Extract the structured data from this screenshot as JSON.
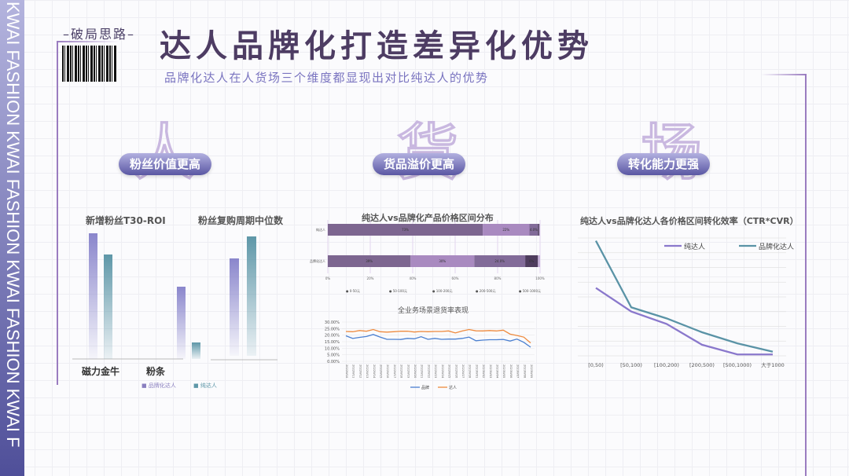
{
  "sidebar": {
    "text": "KWAI FASHION  KWAI FASHION  KWAI FASHION  KWAI F"
  },
  "header": {
    "tag": "–破局思路–",
    "title": "达人品牌化打造差异化优势",
    "subtitle": "品牌化达人在人货场三个维度都显现出对比纯达人的优势"
  },
  "sections": [
    {
      "watermark": "人",
      "label": "粉丝价值更高"
    },
    {
      "watermark": "货",
      "label": "货品溢价更高"
    },
    {
      "watermark": "场",
      "label": "转化能力更强"
    }
  ],
  "colors": {
    "brand": "#8a86cc",
    "pure": "#5e97a8",
    "accent": "#9a7cc0"
  },
  "chart_data": [
    {
      "type": "bar",
      "title": "新增粉丝T30-ROI",
      "categories": [
        "磁力金牛",
        "粉条"
      ],
      "series": [
        {
          "name": "品牌化达人",
          "values": [
            160,
            92
          ]
        },
        {
          "name": "纯达人",
          "values": [
            133,
            21
          ]
        }
      ]
    },
    {
      "type": "bar",
      "title": "粉丝复购周期中位数",
      "categories": [
        ""
      ],
      "series": [
        {
          "name": "品牌化达人",
          "values": [
            124
          ]
        },
        {
          "name": "纯达人",
          "values": [
            152
          ]
        }
      ]
    },
    {
      "type": "bar",
      "stacked": true,
      "orientation": "horizontal",
      "title": "纯达人vs品牌化产品价格区间分布",
      "categories": [
        "纯达人",
        "品牌化达人"
      ],
      "ticks": [
        "0%",
        "20%",
        "40%",
        "60%",
        "80%",
        "100%"
      ],
      "series": [
        {
          "name": "0-50元",
          "values": [
            73,
            39
          ],
          "labels": [
            "73%",
            "39%"
          ],
          "color": "#7d6690"
        },
        {
          "name": "50-100元",
          "values": [
            22,
            30
          ],
          "labels": [
            "22%",
            "30%"
          ],
          "color": "#a98ac0"
        },
        {
          "name": "100-200元",
          "values": [
            4,
            24
          ],
          "labels": [
            "4.0%",
            "24.0%"
          ],
          "color": "#826b99"
        },
        {
          "name": "200-500元",
          "values": [
            0.6,
            6
          ],
          "labels": [
            "",
            "6%"
          ],
          "color": "#4f3d5e"
        },
        {
          "name": "500-1000元",
          "values": [
            0.4,
            1
          ],
          "labels": [
            "",
            ""
          ],
          "color": "#c9b3dc"
        }
      ]
    },
    {
      "type": "line",
      "title": "全业务场景退货率表现",
      "ylim": [
        0,
        30
      ],
      "yticks": [
        "0.00%",
        "5.00%",
        "10.00%",
        "15.00%",
        "20.00%",
        "25.00%",
        "30.00%"
      ],
      "x": [
        "2022W10",
        "2022W11",
        "2022W12",
        "2022W13",
        "2022W14",
        "2022W15",
        "2022W16",
        "2022W17",
        "2022W18",
        "2022W19",
        "2022W20",
        "2022W21",
        "2022W22",
        "2022W23",
        "2022W24",
        "2022W25",
        "2022W26",
        "2022W27",
        "2022W28",
        "2023W01",
        "2023W02",
        "2023W03",
        "2023W04",
        "2023W05",
        "2023W06",
        "2023W07",
        "2023W08",
        "2023W09"
      ],
      "series": [
        {
          "name": "品牌",
          "color": "#4a7fd0",
          "values": [
            19.5,
            17.5,
            18.3,
            19,
            20.5,
            18.5,
            16.8,
            16.8,
            16.7,
            17.5,
            17.2,
            18.8,
            16.8,
            17.5,
            16.8,
            17,
            17,
            17.5,
            18.5,
            15.7,
            16.2,
            16.5,
            16.5,
            16.7,
            15.5,
            17,
            14.5,
            10.8
          ]
        },
        {
          "name": "达人",
          "color": "#ee8a3e",
          "values": [
            22.8,
            22.6,
            23.5,
            23,
            24.3,
            22.6,
            22.3,
            22.6,
            23,
            23,
            22.4,
            22.8,
            22.6,
            22.8,
            22.8,
            23.2,
            21.7,
            23.2,
            24.3,
            23.3,
            23.2,
            23.5,
            23.2,
            23.8,
            20.8,
            19.7,
            18.5,
            14
          ]
        }
      ]
    },
    {
      "type": "line",
      "title": "纯达人vs品牌化达人各价格区间转化效率（CTR*CVR）",
      "ylim": [
        0,
        8
      ],
      "categories": [
        "[0,50)",
        "[50,100)",
        "[100,200)",
        "[200,500)",
        "[500,1000)",
        "大于1000"
      ],
      "series": [
        {
          "name": "纯达人",
          "color": "#8a78cc",
          "values": [
            4.9,
            3.2,
            2.3,
            0.8,
            0.1,
            0.1
          ]
        },
        {
          "name": "品牌化达人",
          "color": "#5a93a6",
          "values": [
            8.3,
            3.5,
            2.7,
            1.7,
            0.9,
            0.3
          ]
        }
      ]
    }
  ]
}
